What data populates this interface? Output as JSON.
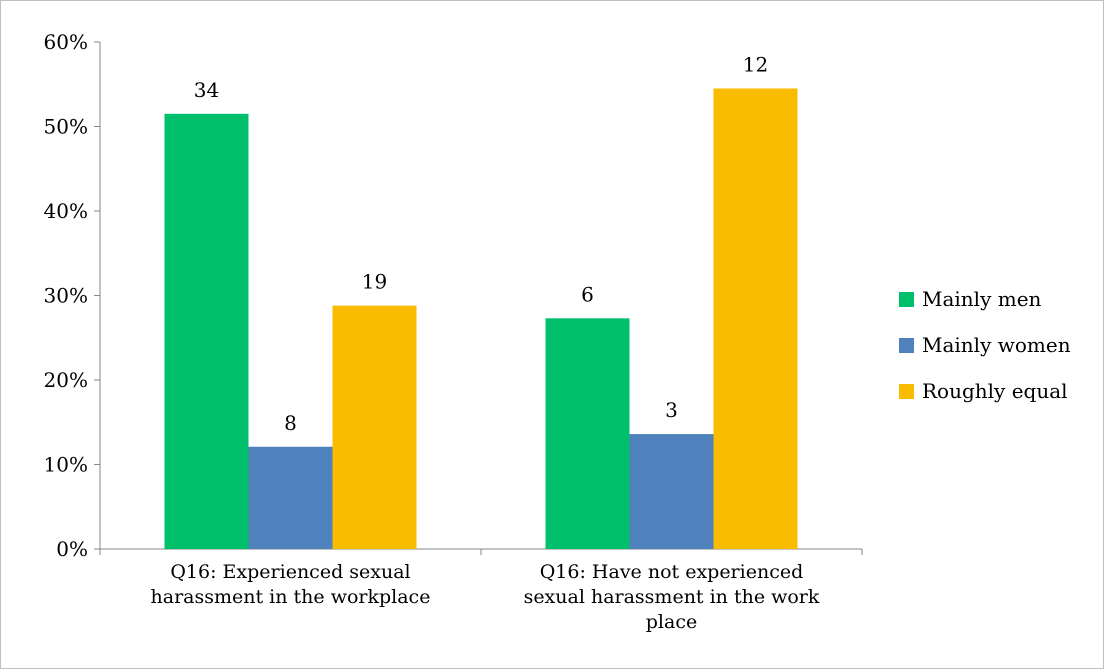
{
  "chart_data": {
    "type": "bar",
    "categories": [
      [
        "Q16: Experienced sexual",
        "harassment in the workplace"
      ],
      [
        "Q16: Have not experienced",
        "sexual harassment in the work",
        "place"
      ]
    ],
    "series": [
      {
        "name": "Mainly men",
        "color": "#00c06c",
        "values": [
          51.5,
          27.3
        ],
        "labels": [
          "34",
          "6"
        ]
      },
      {
        "name": "Mainly women",
        "color": "#4f81bd",
        "values": [
          12.1,
          13.6
        ],
        "labels": [
          "8",
          "3"
        ]
      },
      {
        "name": "Roughly equal",
        "color": "#f9bc00",
        "values": [
          28.8,
          54.5
        ],
        "labels": [
          "19",
          "12"
        ]
      }
    ],
    "yticks": [
      "0%",
      "10%",
      "20%",
      "30%",
      "40%",
      "50%",
      "60%"
    ],
    "ylim": [
      0,
      60
    ],
    "legend_position": "right",
    "grid": false
  }
}
